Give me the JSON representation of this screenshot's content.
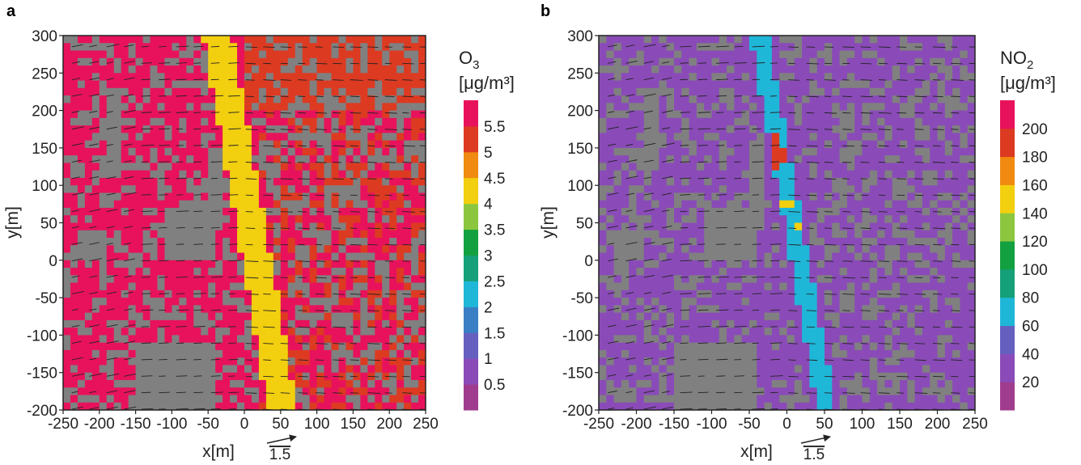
{
  "chart_data": [
    {
      "type": "heatmap",
      "panel_label": "a",
      "xlabel": "x[m]",
      "ylabel": "y[m]",
      "xlim": [
        -250,
        250
      ],
      "ylim": [
        -200,
        300
      ],
      "xticks": [
        -250,
        -200,
        -150,
        -100,
        -50,
        0,
        50,
        100,
        150,
        200,
        250
      ],
      "yticks": [
        300,
        250,
        200,
        150,
        100,
        50,
        0,
        -50,
        -100,
        -150,
        -200
      ],
      "xtick_labels": [
        "-250",
        "-200",
        "-150",
        "-100",
        "-50",
        "0",
        "50",
        "100",
        "150",
        "200",
        "250"
      ],
      "ytick_labels": [
        "300",
        "250",
        "200",
        "150",
        "100",
        "50",
        "0",
        "-50",
        "-100",
        "-150",
        "-200"
      ],
      "wind_reference_label": "1.5",
      "wind_reference_value": 1.5,
      "colorbar": {
        "species": "O",
        "subscript": "3",
        "unit": "[μg/m³]",
        "tick_labels": [
          "5.5",
          "5",
          "4.5",
          "4",
          "3.5",
          "3",
          "2.5",
          "2",
          "1.5",
          "1",
          "0.5"
        ],
        "tick_values": [
          5.5,
          5,
          4.5,
          4,
          3.5,
          3,
          2.5,
          2,
          1.5,
          1,
          0.5
        ],
        "range": [
          0,
          6
        ],
        "colors": [
          "#a03c8e",
          "#8a4bb8",
          "#6560c0",
          "#3a7fc4",
          "#1fb7d8",
          "#15a07a",
          "#13a040",
          "#8cc63f",
          "#f2cf0f",
          "#f08a10",
          "#dd3a22",
          "#e8125c"
        ]
      },
      "building_color": "#808080",
      "street_canyon_value": 4.0,
      "background_value": 5.8,
      "upper_right_value": 5.2
    },
    {
      "type": "heatmap",
      "panel_label": "b",
      "xlabel": "x[m]",
      "ylabel": "y[m]",
      "xlim": [
        -250,
        250
      ],
      "ylim": [
        -200,
        300
      ],
      "xticks": [
        -250,
        -200,
        -150,
        -100,
        -50,
        0,
        50,
        100,
        150,
        200,
        250
      ],
      "yticks": [
        300,
        250,
        200,
        150,
        100,
        50,
        0,
        -50,
        -100,
        -150,
        -200
      ],
      "xtick_labels": [
        "-250",
        "-200",
        "-150",
        "-100",
        "-50",
        "0",
        "50",
        "100",
        "150",
        "200",
        "250"
      ],
      "ytick_labels": [
        "300",
        "250",
        "200",
        "150",
        "100",
        "50",
        "0",
        "-50",
        "-100",
        "-150",
        "-200"
      ],
      "wind_reference_label": "1.5",
      "wind_reference_value": 1.5,
      "colorbar": {
        "species": "NO",
        "subscript": "2",
        "unit": "[μg/m³]",
        "tick_labels": [
          "200",
          "180",
          "160",
          "140",
          "120",
          "100",
          "80",
          "60",
          "40",
          "20"
        ],
        "tick_values": [
          200,
          180,
          160,
          140,
          120,
          100,
          80,
          60,
          40,
          20
        ],
        "range": [
          0,
          220
        ],
        "colors": [
          "#a03c8e",
          "#8a4bb8",
          "#6560c0",
          "#1fb7d8",
          "#15a07a",
          "#13a040",
          "#8cc63f",
          "#f2cf0f",
          "#f08a10",
          "#dd3a22",
          "#e8125c"
        ]
      },
      "building_color": "#808080",
      "street_canyon_value": 75,
      "background_value": 25,
      "hotspot_value": 190
    }
  ]
}
